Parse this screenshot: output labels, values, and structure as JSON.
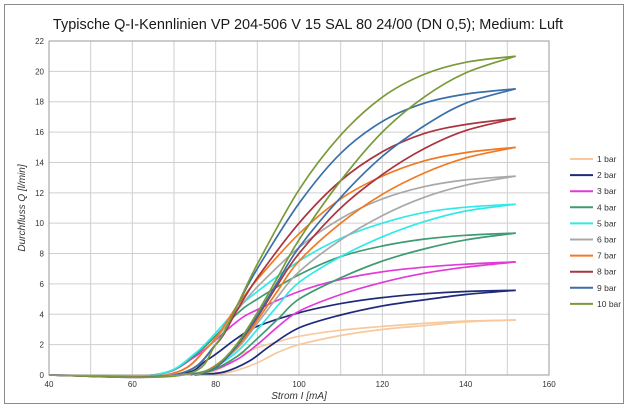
{
  "chart_data": {
    "type": "line",
    "title": "Typische Q-I-Kennlinien VP 204-506 V 15 SAL 80 24/00 (DN 0,5); Medium: Luft",
    "xlabel": "Strom I [mA]",
    "ylabel": "Durchfluss Q [l/min]",
    "xlim": [
      40,
      160
    ],
    "ylim": [
      0,
      22
    ],
    "xticks": [
      40,
      60,
      80,
      100,
      120,
      140,
      160
    ],
    "yticks": [
      0,
      2,
      4,
      6,
      8,
      10,
      12,
      14,
      16,
      18,
      20,
      22
    ],
    "grid": true,
    "legend_position": "right",
    "series": [
      {
        "name": "1 bar",
        "color": "#f7c99c",
        "rising": [
          [
            40,
            0
          ],
          [
            70,
            0
          ],
          [
            80,
            0.3
          ],
          [
            85,
            1.2
          ],
          [
            90,
            1.8
          ],
          [
            95,
            2.2
          ],
          [
            100,
            2.55
          ],
          [
            110,
            2.95
          ],
          [
            120,
            3.2
          ],
          [
            130,
            3.4
          ],
          [
            140,
            3.55
          ],
          [
            152,
            3.62
          ]
        ],
        "falling": [
          [
            152,
            3.62
          ],
          [
            140,
            3.5
          ],
          [
            130,
            3.25
          ],
          [
            120,
            3.0
          ],
          [
            110,
            2.6
          ],
          [
            100,
            2.0
          ],
          [
            95,
            1.5
          ],
          [
            90,
            0.8
          ],
          [
            85,
            0.3
          ],
          [
            80,
            0
          ]
        ]
      },
      {
        "name": "2 bar",
        "color": "#1f2a7a",
        "rising": [
          [
            40,
            0
          ],
          [
            70,
            0
          ],
          [
            78,
            1.0
          ],
          [
            85,
            2.4
          ],
          [
            90,
            3.2
          ],
          [
            100,
            4.1
          ],
          [
            110,
            4.7
          ],
          [
            120,
            5.1
          ],
          [
            130,
            5.35
          ],
          [
            140,
            5.5
          ],
          [
            152,
            5.58
          ]
        ],
        "falling": [
          [
            152,
            5.58
          ],
          [
            140,
            5.3
          ],
          [
            130,
            4.95
          ],
          [
            120,
            4.55
          ],
          [
            110,
            3.95
          ],
          [
            100,
            3.1
          ],
          [
            93,
            1.9
          ],
          [
            88,
            0.9
          ],
          [
            82,
            0.2
          ],
          [
            75,
            0
          ]
        ]
      },
      {
        "name": "3 bar",
        "color": "#e23ad8",
        "rising": [
          [
            40,
            0
          ],
          [
            65,
            0
          ],
          [
            75,
            1.2
          ],
          [
            85,
            3.5
          ],
          [
            90,
            4.3
          ],
          [
            100,
            5.5
          ],
          [
            110,
            6.3
          ],
          [
            120,
            6.8
          ],
          [
            130,
            7.1
          ],
          [
            140,
            7.3
          ],
          [
            152,
            7.45
          ]
        ],
        "falling": [
          [
            152,
            7.45
          ],
          [
            140,
            7.1
          ],
          [
            130,
            6.7
          ],
          [
            120,
            6.1
          ],
          [
            110,
            5.3
          ],
          [
            100,
            4.2
          ],
          [
            95,
            3.2
          ],
          [
            90,
            2.0
          ],
          [
            85,
            1.0
          ],
          [
            78,
            0.2
          ],
          [
            70,
            0
          ]
        ]
      },
      {
        "name": "4 bar",
        "color": "#3e9b72",
        "rising": [
          [
            40,
            0
          ],
          [
            65,
            0
          ],
          [
            75,
            1.3
          ],
          [
            85,
            4.0
          ],
          [
            90,
            5.0
          ],
          [
            100,
            6.6
          ],
          [
            110,
            7.8
          ],
          [
            120,
            8.5
          ],
          [
            130,
            8.95
          ],
          [
            140,
            9.2
          ],
          [
            152,
            9.35
          ]
        ],
        "falling": [
          [
            152,
            9.35
          ],
          [
            140,
            8.9
          ],
          [
            130,
            8.3
          ],
          [
            120,
            7.5
          ],
          [
            110,
            6.4
          ],
          [
            100,
            5.0
          ],
          [
            95,
            3.7
          ],
          [
            90,
            2.4
          ],
          [
            85,
            1.2
          ],
          [
            78,
            0.2
          ],
          [
            70,
            0
          ]
        ]
      },
      {
        "name": "5 bar",
        "color": "#33e8e8",
        "rising": [
          [
            40,
            0
          ],
          [
            65,
            0
          ],
          [
            75,
            1.4
          ],
          [
            85,
            4.3
          ],
          [
            90,
            5.5
          ],
          [
            100,
            7.5
          ],
          [
            110,
            9.0
          ],
          [
            120,
            10.0
          ],
          [
            130,
            10.7
          ],
          [
            140,
            11.05
          ],
          [
            152,
            11.25
          ]
        ],
        "falling": [
          [
            152,
            11.25
          ],
          [
            140,
            10.8
          ],
          [
            130,
            10.1
          ],
          [
            120,
            9.1
          ],
          [
            110,
            7.8
          ],
          [
            100,
            6.1
          ],
          [
            95,
            4.6
          ],
          [
            90,
            3.0
          ],
          [
            85,
            1.5
          ],
          [
            78,
            0.3
          ],
          [
            70,
            0
          ]
        ]
      },
      {
        "name": "6 bar",
        "color": "#a8a8a8",
        "rising": [
          [
            40,
            0
          ],
          [
            68,
            0
          ],
          [
            78,
            1.8
          ],
          [
            85,
            4.2
          ],
          [
            90,
            5.8
          ],
          [
            100,
            8.4
          ],
          [
            110,
            10.3
          ],
          [
            120,
            11.6
          ],
          [
            130,
            12.4
          ],
          [
            140,
            12.85
          ],
          [
            152,
            13.1
          ]
        ],
        "falling": [
          [
            152,
            13.1
          ],
          [
            140,
            12.5
          ],
          [
            130,
            11.7
          ],
          [
            120,
            10.5
          ],
          [
            110,
            8.9
          ],
          [
            100,
            6.8
          ],
          [
            95,
            5.2
          ],
          [
            90,
            3.4
          ],
          [
            85,
            1.7
          ],
          [
            78,
            0.3
          ],
          [
            72,
            0
          ]
        ]
      },
      {
        "name": "7 bar",
        "color": "#f07a23",
        "rising": [
          [
            40,
            0
          ],
          [
            68,
            0
          ],
          [
            78,
            1.8
          ],
          [
            85,
            4.5
          ],
          [
            90,
            6.3
          ],
          [
            100,
            9.3
          ],
          [
            110,
            11.6
          ],
          [
            120,
            13.1
          ],
          [
            130,
            14.1
          ],
          [
            140,
            14.65
          ],
          [
            152,
            15.0
          ]
        ],
        "falling": [
          [
            152,
            15.0
          ],
          [
            140,
            14.3
          ],
          [
            130,
            13.3
          ],
          [
            120,
            11.9
          ],
          [
            110,
            10.0
          ],
          [
            100,
            7.5
          ],
          [
            95,
            5.6
          ],
          [
            90,
            3.6
          ],
          [
            85,
            1.8
          ],
          [
            78,
            0.3
          ],
          [
            72,
            0
          ]
        ]
      },
      {
        "name": "8 bar",
        "color": "#a8353f",
        "rising": [
          [
            40,
            0
          ],
          [
            70,
            0
          ],
          [
            80,
            2.0
          ],
          [
            85,
            4.2
          ],
          [
            90,
            6.4
          ],
          [
            100,
            10.0
          ],
          [
            110,
            12.8
          ],
          [
            120,
            14.7
          ],
          [
            130,
            15.9
          ],
          [
            140,
            16.5
          ],
          [
            152,
            16.9
          ]
        ],
        "falling": [
          [
            152,
            16.9
          ],
          [
            140,
            16.1
          ],
          [
            130,
            14.9
          ],
          [
            120,
            13.2
          ],
          [
            110,
            11.0
          ],
          [
            100,
            8.0
          ],
          [
            95,
            6.0
          ],
          [
            90,
            3.8
          ],
          [
            85,
            1.9
          ],
          [
            80,
            0.5
          ],
          [
            74,
            0
          ]
        ]
      },
      {
        "name": "9 bar",
        "color": "#3a6fa8",
        "rising": [
          [
            40,
            0
          ],
          [
            70,
            0
          ],
          [
            80,
            2.0
          ],
          [
            85,
            4.5
          ],
          [
            90,
            7.0
          ],
          [
            100,
            11.3
          ],
          [
            110,
            14.6
          ],
          [
            120,
            16.7
          ],
          [
            130,
            17.9
          ],
          [
            140,
            18.5
          ],
          [
            152,
            18.85
          ]
        ],
        "falling": [
          [
            152,
            18.85
          ],
          [
            140,
            17.9
          ],
          [
            130,
            16.4
          ],
          [
            120,
            14.4
          ],
          [
            110,
            11.7
          ],
          [
            100,
            8.4
          ],
          [
            95,
            6.2
          ],
          [
            90,
            3.9
          ],
          [
            85,
            1.9
          ],
          [
            80,
            0.5
          ],
          [
            74,
            0
          ]
        ]
      },
      {
        "name": "10 bar",
        "color": "#7a9a3a",
        "rising": [
          [
            40,
            0
          ],
          [
            72,
            0
          ],
          [
            80,
            2.0
          ],
          [
            85,
            4.5
          ],
          [
            90,
            7.3
          ],
          [
            100,
            12.2
          ],
          [
            110,
            15.8
          ],
          [
            120,
            18.3
          ],
          [
            130,
            19.8
          ],
          [
            140,
            20.6
          ],
          [
            152,
            21.0
          ]
        ],
        "falling": [
          [
            152,
            21.0
          ],
          [
            140,
            19.9
          ],
          [
            130,
            18.3
          ],
          [
            120,
            16.0
          ],
          [
            110,
            12.8
          ],
          [
            100,
            8.9
          ],
          [
            95,
            6.5
          ],
          [
            90,
            4.1
          ],
          [
            85,
            2.0
          ],
          [
            80,
            0.6
          ],
          [
            75,
            0
          ]
        ]
      }
    ]
  }
}
